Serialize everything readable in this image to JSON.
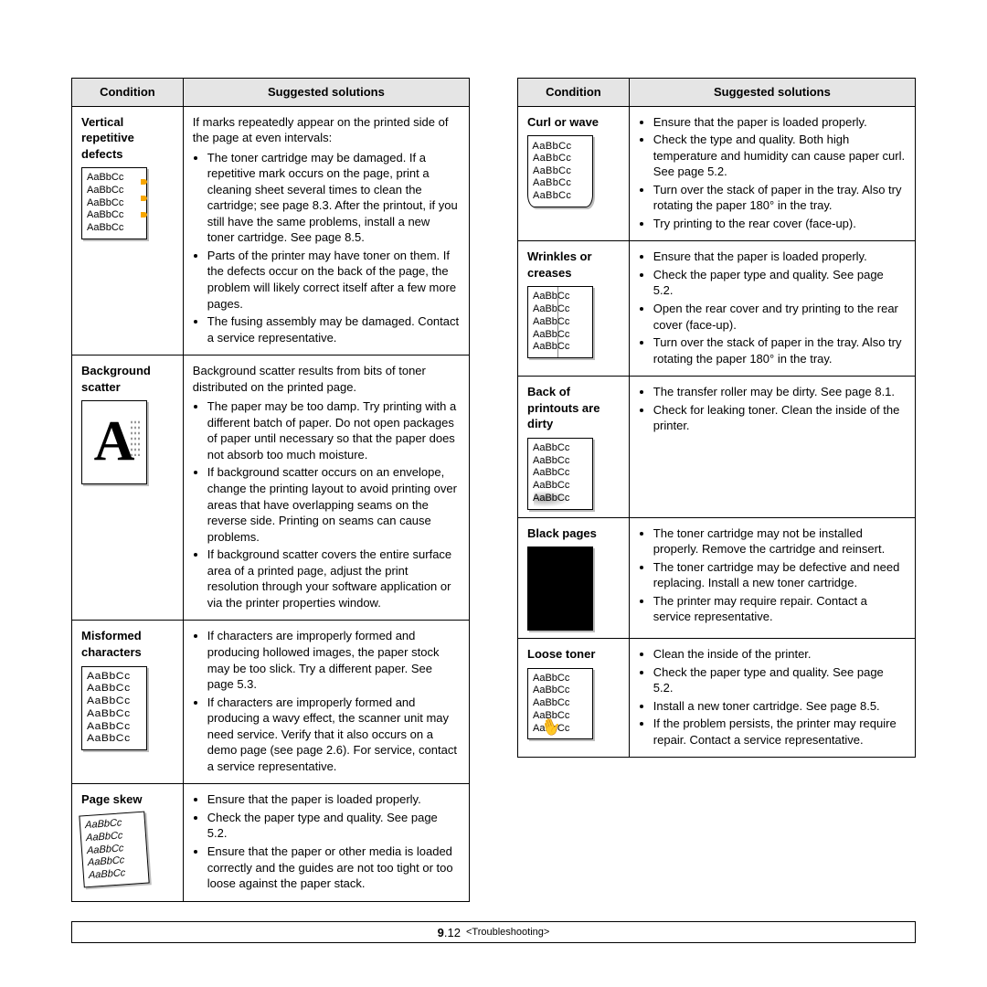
{
  "header": {
    "condition": "Condition",
    "solutions": "Suggested solutions"
  },
  "sample_text": "AaBbCc",
  "footer": {
    "page_bold": "9",
    "page_rest": ".12",
    "section": "<Troubleshooting>"
  },
  "left": [
    {
      "title": "Vertical repetitive defects",
      "sample": "repeat",
      "intro": "If marks repeatedly appear on the printed side of the page at even intervals:",
      "items": [
        "The toner cartridge may be damaged. If a repetitive mark occurs on the page, print a cleaning sheet several times to clean the cartridge; see page 8.3. After the printout, if you still have the same problems, install a new toner cartridge. See page 8.5.",
        "Parts of the printer may have toner on them. If the defects occur on the back of the page, the problem will likely correct itself after a few more pages.",
        "The fusing assembly may be damaged. Contact a service representative."
      ]
    },
    {
      "title": "Background scatter",
      "sample": "bigA",
      "intro": "Background scatter results from bits of toner distributed on the printed page.",
      "items": [
        "The paper may be too damp. Try printing with a different batch of paper. Do not open packages of paper until necessary so that the paper does not absorb too much moisture.",
        "If background scatter occurs on an envelope, change the printing layout to avoid printing over areas that have overlapping seams on the reverse side. Printing on seams can cause problems.",
        "If background scatter covers the entire surface area of a printed page, adjust the print resolution through your software application or via the printer properties window."
      ]
    },
    {
      "title": "Misformed characters",
      "sample": "thin",
      "items": [
        "If characters are improperly formed and producing hollowed images, the paper stock may be too slick. Try a different paper. See page 5.3.",
        "If characters are improperly formed and producing a wavy effect, the scanner unit may need service. Verify that it also occurs on a demo page (see page 2.6). For service, contact a service representative."
      ]
    },
    {
      "title": "Page skew",
      "sample": "skew",
      "items": [
        "Ensure that the paper is loaded properly.",
        "Check the paper type and quality. See page 5.2.",
        "Ensure that the paper or other media is loaded correctly and the guides are not too tight or too loose against the paper stack."
      ]
    }
  ],
  "right": [
    {
      "title": "Curl or wave",
      "sample": "curl",
      "items": [
        "Ensure that the paper is loaded properly.",
        "Check the type and quality. Both high temperature and humidity can cause paper curl. See page 5.2.",
        "Turn over the stack of paper in the tray. Also try rotating the paper 180° in the tray.",
        "Try printing to the rear cover (face-up)."
      ]
    },
    {
      "title": "Wrinkles or creases",
      "sample": "crease",
      "items": [
        "Ensure that the paper is loaded properly.",
        "Check the paper type and quality. See page 5.2.",
        "Open the rear cover and try printing to the rear cover (face-up).",
        "Turn over the stack of paper in the tray. Also try rotating the paper 180° in the tray."
      ]
    },
    {
      "title": "Back of printouts are dirty",
      "sample": "smudge",
      "items": [
        "The transfer roller may be dirty. See page 8.1.",
        "Check for leaking toner. Clean the inside of the printer."
      ]
    },
    {
      "title": "Black pages",
      "sample": "black",
      "items": [
        "The toner cartridge may not be installed properly. Remove the cartridge and reinsert.",
        "The toner cartridge may be defective and need replacing. Install a new toner cartridge.",
        "The printer may require repair. Contact a service representative."
      ]
    },
    {
      "title": "Loose toner",
      "sample": "loose",
      "items": [
        "Clean the inside of the printer.",
        "Check the paper type and quality. See page 5.2.",
        "Install a new toner cartridge. See page 8.5.",
        "If the problem persists, the printer may require repair. Contact a service representative."
      ]
    }
  ]
}
